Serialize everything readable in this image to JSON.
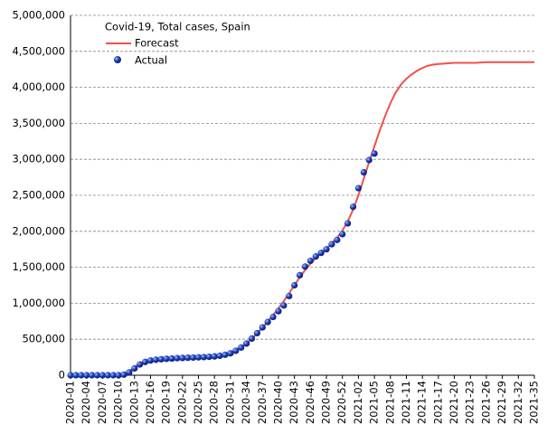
{
  "chart_data": {
    "type": "line",
    "title": "Covid-19, Total cases, Spain",
    "categories": [
      "2020-01",
      null,
      null,
      "2020-04",
      null,
      null,
      "2020-07",
      null,
      null,
      "2020-10",
      null,
      null,
      "2020-13",
      null,
      null,
      "2020-16",
      null,
      null,
      "2020-19",
      null,
      null,
      "2020-22",
      null,
      null,
      "2020-25",
      null,
      null,
      "2020-28",
      null,
      null,
      "2020-31",
      null,
      null,
      "2020-34",
      null,
      null,
      "2020-37",
      null,
      null,
      "2020-40",
      null,
      null,
      "2020-43",
      null,
      null,
      "2020-46",
      null,
      null,
      "2020-49",
      null,
      null,
      "2020-52",
      null,
      null,
      "2021-02",
      null,
      null,
      "2021-05",
      null,
      null,
      "2021-08",
      null,
      null,
      "2021-11",
      null,
      null,
      "2021-14",
      null,
      null,
      "2021-17",
      null,
      null,
      "2021-20",
      null,
      null,
      "2021-23",
      null,
      null,
      "2021-26",
      null,
      null,
      "2021-29",
      null,
      null,
      "2021-32",
      null,
      null,
      "2021-35"
    ],
    "series": [
      {
        "name": "Forecast",
        "color": "#f0504a",
        "style": "line",
        "values": [
          0,
          0,
          0,
          0,
          0,
          0,
          0,
          0,
          0,
          2000,
          15000,
          50000,
          110000,
          160000,
          190000,
          205000,
          213000,
          219000,
          224000,
          228000,
          232000,
          235000,
          238000,
          241000,
          244000,
          248000,
          253000,
          260000,
          270000,
          285000,
          308000,
          340000,
          385000,
          440000,
          505000,
          580000,
          660000,
          745000,
          835000,
          930000,
          1030000,
          1140000,
          1250000,
          1360000,
          1460000,
          1550000,
          1630000,
          1700000,
          1760000,
          1830000,
          1910000,
          2010000,
          2140000,
          2300000,
          2500000,
          2730000,
          2960000,
          3180000,
          3400000,
          3600000,
          3780000,
          3930000,
          4040000,
          4120000,
          4180000,
          4230000,
          4270000,
          4300000,
          4315000,
          4325000,
          4330000,
          4335000,
          4340000,
          4340000,
          4340000,
          4340000,
          4340000,
          4345000,
          4350000,
          4350000,
          4350000,
          4350000,
          4350000,
          4350000,
          4350000,
          4350000,
          4350000,
          4350000
        ]
      },
      {
        "name": "Actual",
        "color": "#1a3cb8",
        "style": "points",
        "values": [
          0,
          0,
          0,
          0,
          0,
          0,
          0,
          0,
          0,
          500,
          8000,
          40000,
          95000,
          150000,
          185000,
          205000,
          215000,
          222000,
          228000,
          232000,
          237000,
          240000,
          243000,
          246000,
          249000,
          252000,
          256000,
          262000,
          270000,
          285000,
          305000,
          340000,
          385000,
          440000,
          510000,
          585000,
          665000,
          740000,
          810000,
          890000,
          970000,
          1100000,
          1250000,
          1390000,
          1510000,
          1590000,
          1650000,
          1700000,
          1750000,
          1820000,
          1880000,
          1960000,
          2110000,
          2340000,
          2600000,
          2820000,
          2990000,
          3080000,
          null,
          null,
          null,
          null,
          null,
          null,
          null,
          null,
          null,
          null,
          null,
          null,
          null,
          null,
          null,
          null,
          null,
          null,
          null,
          null,
          null,
          null,
          null,
          null,
          null,
          null,
          null,
          null,
          null,
          null
        ]
      }
    ],
    "ylim": [
      0,
      5000000
    ],
    "yticks": [
      0,
      {
        "value": 500000,
        "label": "500,000"
      },
      {
        "value": 1000000,
        "label": "1,000,000"
      },
      {
        "value": 1500000,
        "label": "1,500,000"
      },
      {
        "value": 2000000,
        "label": "2,000,000"
      },
      {
        "value": 2500000,
        "label": "2,500,000"
      },
      {
        "value": 3000000,
        "label": "3,000,000"
      },
      {
        "value": 3500000,
        "label": "3,500,000"
      },
      {
        "value": 4000000,
        "label": "4,000,000"
      },
      {
        "value": 4500000,
        "label": "4,500,000"
      },
      {
        "value": 5000000,
        "label": "5,000,000"
      }
    ],
    "grid": true
  }
}
